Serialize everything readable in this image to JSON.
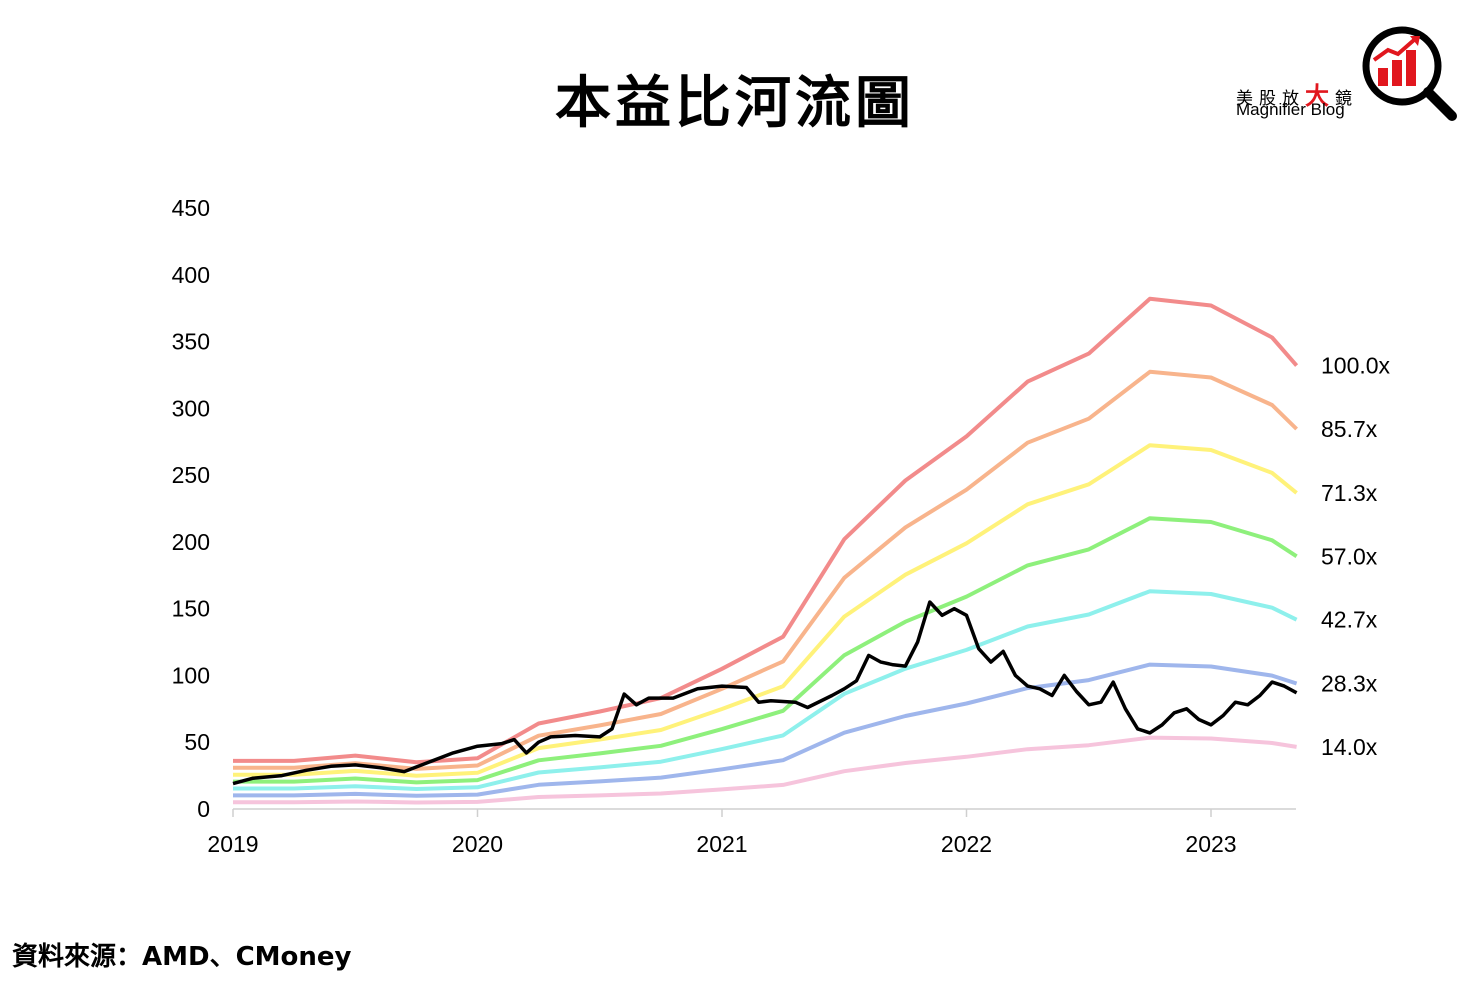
{
  "title": "本益比河流圖",
  "logo": {
    "cn_before": "美股放",
    "cn_big": "大",
    "cn_after": "鏡",
    "en": "Magnifier Blog",
    "icon": "magnifier-bar-chart-icon",
    "accent_color": "#e1171e"
  },
  "source": "資料來源：AMD、CMoney",
  "chart_data": {
    "type": "line",
    "title": "本益比河流圖",
    "xlabel": "",
    "ylabel": "",
    "xlim": [
      2019.0,
      2023.35
    ],
    "ylim": [
      0,
      450
    ],
    "y_ticks": [
      "0",
      "50",
      "100",
      "150",
      "200",
      "250",
      "300",
      "350",
      "400",
      "450"
    ],
    "x_ticks": [
      "2019",
      "2020",
      "2021",
      "2022",
      "2023"
    ],
    "grid": false,
    "legend": "none",
    "band_labels": [
      "100.0x",
      "85.7x",
      "71.3x",
      "57.0x",
      "42.7x",
      "28.3x",
      "14.0x"
    ],
    "eps_series": {
      "x": [
        2019.0,
        2019.25,
        2019.5,
        2019.75,
        2020.0,
        2020.25,
        2020.5,
        2020.75,
        2021.0,
        2021.25,
        2021.5,
        2021.75,
        2022.0,
        2022.25,
        2022.5,
        2022.75,
        2023.0,
        2023.25,
        2023.35
      ],
      "eps": [
        0.36,
        0.36,
        0.4,
        0.35,
        0.38,
        0.64,
        0.73,
        0.83,
        1.05,
        1.29,
        2.02,
        2.46,
        2.79,
        3.2,
        3.41,
        3.82,
        3.77,
        3.53,
        3.32
      ]
    },
    "band_colors": [
      "#f28b8b",
      "#f8b48c",
      "#fff27a",
      "#8ef07c",
      "#8ef0ec",
      "#9fb6ec",
      "#f6c4dc"
    ],
    "price": {
      "name": "",
      "color": "#000000",
      "x": [
        2019.0,
        2019.08,
        2019.2,
        2019.3,
        2019.4,
        2019.5,
        2019.6,
        2019.7,
        2019.8,
        2019.9,
        2020.0,
        2020.1,
        2020.15,
        2020.2,
        2020.25,
        2020.3,
        2020.4,
        2020.5,
        2020.55,
        2020.6,
        2020.65,
        2020.7,
        2020.8,
        2020.9,
        2021.0,
        2021.1,
        2021.15,
        2021.2,
        2021.3,
        2021.35,
        2021.45,
        2021.5,
        2021.55,
        2021.6,
        2021.65,
        2021.7,
        2021.75,
        2021.8,
        2021.85,
        2021.9,
        2021.95,
        2022.0,
        2022.05,
        2022.1,
        2022.15,
        2022.2,
        2022.25,
        2022.3,
        2022.35,
        2022.4,
        2022.45,
        2022.5,
        2022.55,
        2022.6,
        2022.65,
        2022.7,
        2022.75,
        2022.8,
        2022.85,
        2022.9,
        2022.95,
        2023.0,
        2023.05,
        2023.1,
        2023.15,
        2023.2,
        2023.25,
        2023.3,
        2023.35
      ],
      "y": [
        19,
        23,
        25,
        29,
        32,
        33,
        31,
        28,
        35,
        42,
        47,
        49,
        52,
        42,
        50,
        54,
        55,
        54,
        60,
        86,
        78,
        83,
        83,
        90,
        92,
        91,
        80,
        81,
        80,
        76,
        85,
        90,
        96,
        115,
        110,
        108,
        107,
        125,
        155,
        145,
        150,
        145,
        120,
        110,
        118,
        100,
        92,
        90,
        85,
        100,
        88,
        78,
        80,
        95,
        75,
        60,
        57,
        63,
        72,
        75,
        67,
        63,
        70,
        80,
        78,
        85,
        95,
        92,
        87
      ]
    }
  }
}
